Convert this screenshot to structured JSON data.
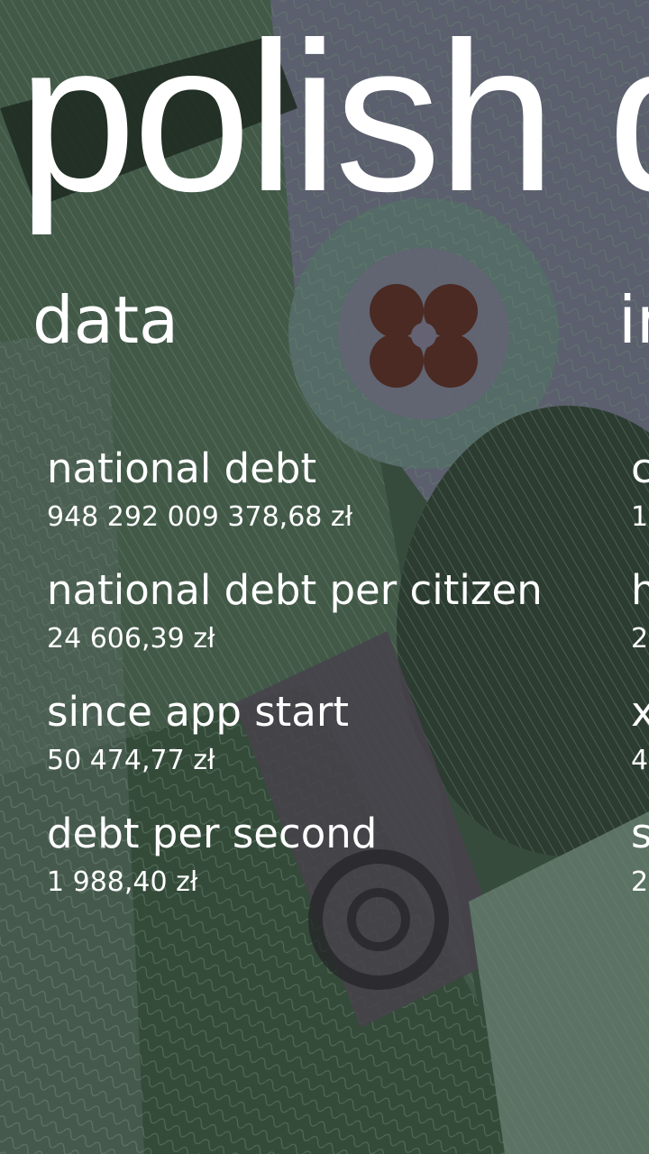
{
  "app": {
    "title": "polish d"
  },
  "sections": [
    {
      "header": "data",
      "items": [
        {
          "title": "national debt",
          "value": "948 292 009 378,68 zł"
        },
        {
          "title": "national debt per citizen",
          "value": "24 606,39 zł"
        },
        {
          "title": "since app start",
          "value": "50 474,77 zł"
        },
        {
          "title": "debt per second",
          "value": "1 988,40 zł"
        }
      ]
    },
    {
      "header": "in",
      "items": [
        {
          "title": "c",
          "value": "1"
        },
        {
          "title": "h",
          "value": "2"
        },
        {
          "title": "x",
          "value": "4"
        },
        {
          "title": "s",
          "value": "2"
        }
      ]
    }
  ],
  "colors": {
    "text": "#ffffff",
    "overlay": "#0f1912",
    "note_green": "#5f8a6a",
    "note_lavender": "#8c86a8",
    "note_dark": "#2d3a2f",
    "seal_brown": "#6b2a20"
  }
}
